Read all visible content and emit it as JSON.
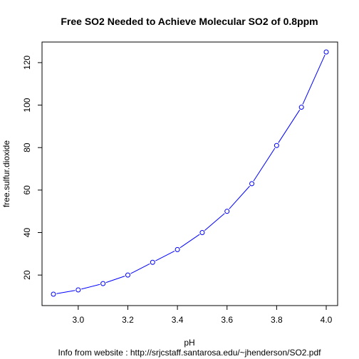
{
  "chart_data": {
    "type": "line",
    "title": "Free SO2 Needed to Achieve Molecular SO2 of 0.8ppm",
    "xlabel": "pH",
    "ylabel": "free.sulfur.dioxide",
    "caption": "Info from website : http://srjcstaff.santarosa.edu/~jhenderson/SO2.pdf",
    "x": [
      2.9,
      3.0,
      3.1,
      3.2,
      3.3,
      3.4,
      3.5,
      3.6,
      3.7,
      3.8,
      3.9,
      4.0
    ],
    "y": [
      11,
      13,
      16,
      20,
      26,
      32,
      40,
      50,
      63,
      81,
      99,
      125
    ],
    "xlim": [
      2.9,
      4.0
    ],
    "ylim": [
      11,
      125
    ],
    "xticks": [
      "3.0",
      "3.2",
      "3.4",
      "3.6",
      "3.8",
      "4.0"
    ],
    "yticks": [
      "20",
      "40",
      "60",
      "80",
      "100",
      "120"
    ],
    "grid": false,
    "series_color": "#0000ff",
    "marker": "open-circle"
  }
}
